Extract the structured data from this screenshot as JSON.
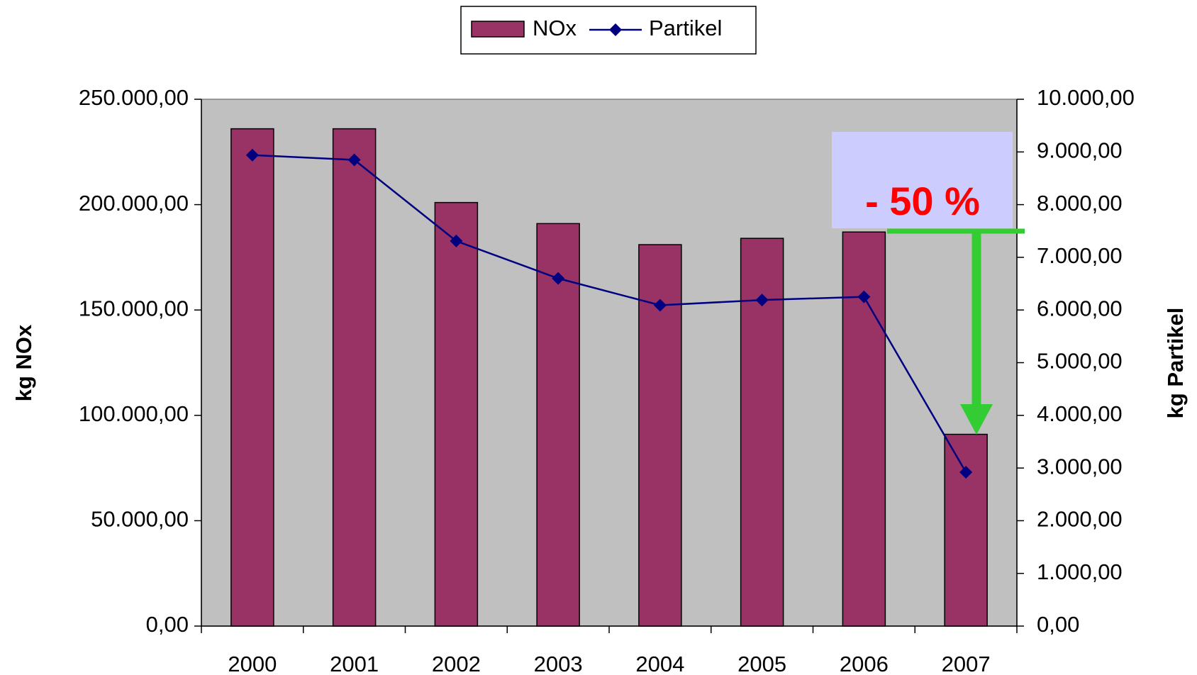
{
  "chart_data": {
    "type": "bar_line",
    "categories": [
      "2000",
      "2001",
      "2002",
      "2003",
      "2004",
      "2005",
      "2006",
      "2007"
    ],
    "series": [
      {
        "name": "NOx",
        "color": "#993366",
        "type": "bar",
        "axis": "y",
        "values": [
          236000,
          236000,
          201000,
          191000,
          181000,
          184000,
          187000,
          91000
        ]
      },
      {
        "name": "Partikel",
        "color": "#000080",
        "type": "line",
        "axis": "y2",
        "values": [
          8940,
          8850,
          7310,
          6600,
          6090,
          6190,
          6250,
          2920
        ]
      }
    ],
    "ylabel": "kg NOx",
    "y2label": "kg Partikel",
    "ylim": [
      0,
      250000
    ],
    "yticks": [
      {
        "value": 0,
        "label": "0,00"
      },
      {
        "value": 50000,
        "label": "50.000,00"
      },
      {
        "value": 100000,
        "label": "100.000,00"
      },
      {
        "value": 150000,
        "label": "150.000,00"
      },
      {
        "value": 200000,
        "label": "200.000,00"
      },
      {
        "value": 250000,
        "label": "250.000,00"
      }
    ],
    "y2lim": [
      0,
      10000
    ],
    "y2ticks": [
      {
        "value": 0,
        "label": "0,00"
      },
      {
        "value": 1000,
        "label": "1.000,00"
      },
      {
        "value": 2000,
        "label": "2.000,00"
      },
      {
        "value": 3000,
        "label": "3.000,00"
      },
      {
        "value": 4000,
        "label": "4.000,00"
      },
      {
        "value": 5000,
        "label": "5.000,00"
      },
      {
        "value": 6000,
        "label": "6.000,00"
      },
      {
        "value": 7000,
        "label": "7.000,00"
      },
      {
        "value": 8000,
        "label": "8.000,00"
      },
      {
        "value": 9000,
        "label": "9.000,00"
      },
      {
        "value": 10000,
        "label": "10.000,00"
      }
    ],
    "annotation": "- 50 %",
    "plot_background": "#c0c0c0",
    "legend": "top"
  }
}
